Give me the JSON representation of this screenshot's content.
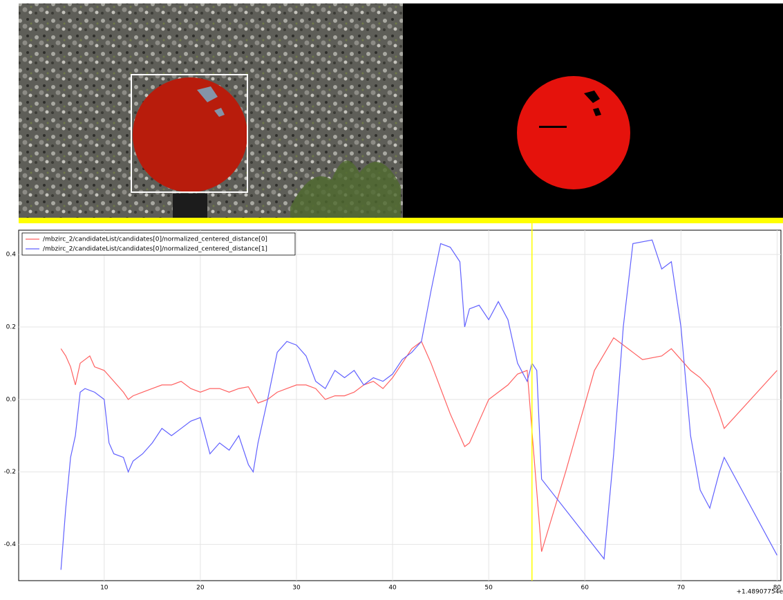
{
  "chart_data": {
    "type": "line",
    "offset_label": "+1.48907754e",
    "xlim": [
      1.1,
      80.4
    ],
    "ylim": [
      -0.5,
      0.467
    ],
    "xticks": [
      10,
      20,
      30,
      40,
      50,
      60,
      70,
      80
    ],
    "yticks": [
      -0.4,
      -0.2,
      {
        "value": 0,
        "label": "0.0"
      },
      0.2,
      0.4
    ],
    "grid": true,
    "legend": "upper left",
    "vline": {
      "x": 54.5,
      "color": "#ffff00"
    },
    "series": [
      {
        "name": "/mbzirc_2/candidateList/candidates[0]/normalized_centered_distance[0]",
        "color": "#ff6060",
        "x": [
          5.5,
          6,
          6.5,
          7,
          7.5,
          8,
          8.5,
          9,
          10,
          11,
          12,
          12.5,
          13,
          14,
          15,
          16,
          17,
          18,
          19,
          20,
          21,
          22,
          23,
          24,
          25,
          26,
          27,
          28,
          29,
          30,
          31,
          32,
          33,
          34,
          35,
          36,
          37,
          38,
          39,
          40,
          41,
          42,
          43,
          44,
          45,
          46,
          47,
          47.5,
          48,
          49,
          50,
          51,
          52,
          53,
          54,
          55.5,
          58,
          61,
          63,
          65,
          66,
          68,
          69,
          70,
          71,
          72,
          73,
          74,
          74.5,
          80
        ],
        "values": [
          0.14,
          0.12,
          0.09,
          0.04,
          0.1,
          0.11,
          0.12,
          0.09,
          0.08,
          0.05,
          0.02,
          0.0,
          0.01,
          0.02,
          0.03,
          0.04,
          0.04,
          0.05,
          0.03,
          0.02,
          0.03,
          0.03,
          0.02,
          0.03,
          0.035,
          -0.01,
          0.0,
          0.02,
          0.03,
          0.04,
          0.04,
          0.03,
          0.0,
          0.01,
          0.01,
          0.02,
          0.04,
          0.05,
          0.03,
          0.06,
          0.1,
          0.14,
          0.16,
          0.1,
          0.03,
          -0.04,
          -0.1,
          -0.13,
          -0.12,
          -0.06,
          0.0,
          0.02,
          0.04,
          0.07,
          0.08,
          -0.42,
          -0.2,
          0.08,
          0.17,
          0.13,
          0.11,
          0.12,
          0.14,
          0.11,
          0.08,
          0.06,
          0.03,
          -0.04,
          -0.08,
          0.08
        ]
      },
      {
        "name": "/mbzirc_2/candidateList/candidates[0]/normalized_centered_distance[1]",
        "color": "#6060ff",
        "x": [
          5.5,
          6,
          6.5,
          7,
          7.5,
          8,
          9,
          10,
          10.5,
          11,
          12,
          12.5,
          13,
          14,
          15,
          16,
          17,
          18,
          19,
          20,
          21,
          22,
          23,
          24,
          25,
          25.5,
          26,
          27,
          28,
          29,
          30,
          31,
          32,
          33,
          34,
          35,
          36,
          37,
          38,
          39,
          40,
          41,
          42,
          43,
          44,
          45,
          46,
          47,
          47.5,
          48,
          49,
          50,
          51,
          52,
          53,
          54,
          54.5,
          55,
          55.5,
          62,
          63,
          64,
          65,
          67,
          68,
          69,
          70,
          71,
          72,
          73,
          74,
          74.5,
          80
        ],
        "values": [
          -0.47,
          -0.3,
          -0.16,
          -0.1,
          0.02,
          0.03,
          0.02,
          0.0,
          -0.12,
          -0.15,
          -0.16,
          -0.2,
          -0.17,
          -0.15,
          -0.12,
          -0.08,
          -0.1,
          -0.08,
          -0.06,
          -0.05,
          -0.15,
          -0.12,
          -0.14,
          -0.1,
          -0.18,
          -0.2,
          -0.12,
          0.0,
          0.13,
          0.16,
          0.15,
          0.12,
          0.05,
          0.03,
          0.08,
          0.06,
          0.08,
          0.04,
          0.06,
          0.05,
          0.07,
          0.11,
          0.13,
          0.16,
          0.3,
          0.43,
          0.42,
          0.38,
          0.2,
          0.25,
          0.26,
          0.22,
          0.27,
          0.22,
          0.1,
          0.05,
          0.1,
          0.08,
          -0.22,
          -0.44,
          -0.15,
          0.2,
          0.43,
          0.44,
          0.36,
          0.38,
          0.2,
          -0.1,
          -0.25,
          -0.3,
          -0.2,
          -0.16,
          -0.43
        ]
      }
    ]
  }
}
